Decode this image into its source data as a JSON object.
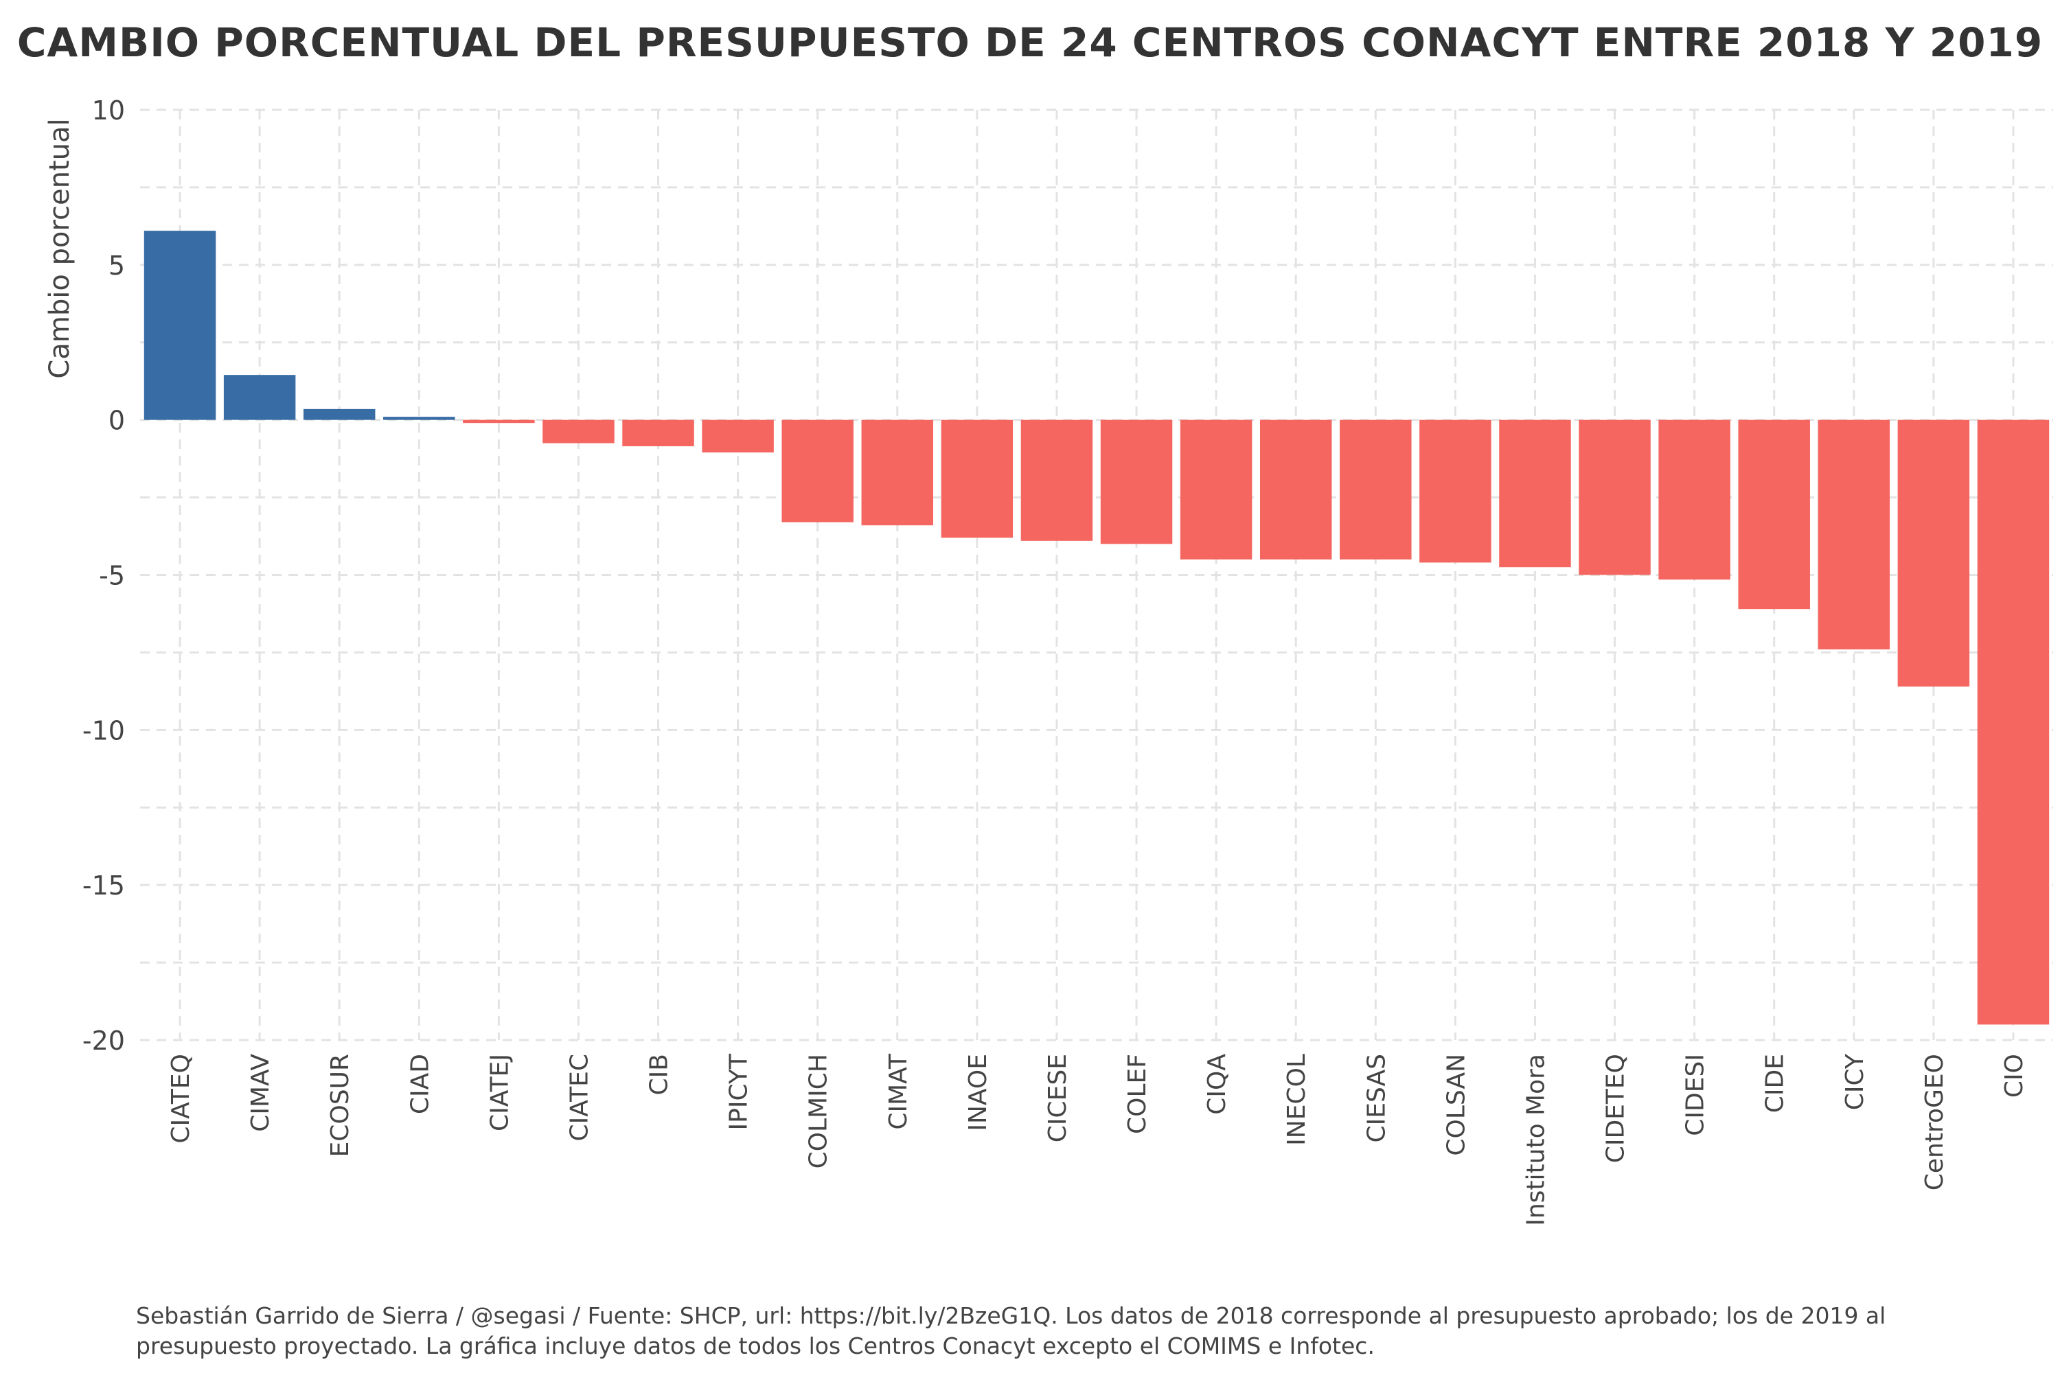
{
  "chart_data": {
    "type": "bar",
    "title": "CAMBIO PORCENTUAL DEL PRESUPUESTO DE 24 CENTROS CONACYT ENTRE 2018 Y 2019",
    "xlabel": "",
    "ylabel": "Cambio porcentual",
    "ylim": [
      -20,
      10
    ],
    "yticks": [
      10,
      5,
      0,
      -5,
      -10,
      -15,
      -20
    ],
    "ytick_labels": [
      "10",
      "5",
      "0",
      "-5",
      "-10",
      "-15",
      "-20"
    ],
    "grid": true,
    "legend": "none",
    "categories": [
      "CIATEQ",
      "CIMAV",
      "ECOSUR",
      "CIAD",
      "CIATEJ",
      "CIATEC",
      "CIB",
      "IPICYT",
      "COLMICH",
      "CIMAT",
      "INAOE",
      "CICESE",
      "COLEF",
      "CIQA",
      "INECOL",
      "CIESAS",
      "COLSAN",
      "Instituto Mora",
      "CIDETEQ",
      "CIDESI",
      "CIDE",
      "CICY",
      "CentroGEO",
      "CIO"
    ],
    "values": [
      6.1,
      1.45,
      0.35,
      0.1,
      -0.1,
      -0.75,
      -0.85,
      -1.05,
      -3.3,
      -3.4,
      -3.8,
      -3.9,
      -4.0,
      -4.5,
      -4.5,
      -4.5,
      -4.6,
      -4.75,
      -5.0,
      -5.15,
      -6.1,
      -7.4,
      -8.6,
      -19.5
    ],
    "colors": {
      "positive": "#386CA5",
      "negative": "#F4665F"
    }
  },
  "caption": "Sebastián Garrido de Sierra / @segasi / Fuente: SHCP, url: https://bit.ly/2BzeG1Q. Los datos de 2018 corresponde al presupuesto aprobado; los de 2019 al presupuesto proyectado. La gráfica incluye datos de todos los Centros Conacyt excepto el COMIMS e Infotec."
}
